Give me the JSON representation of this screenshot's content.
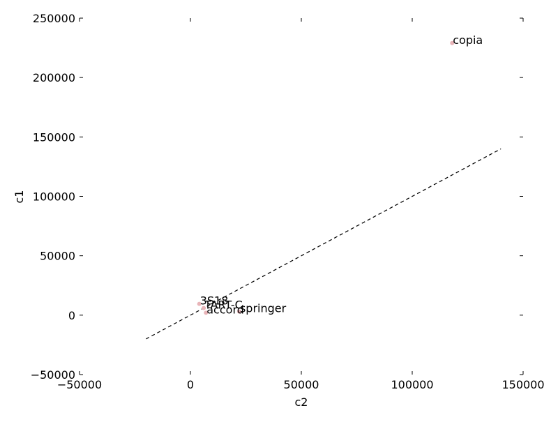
{
  "chart_data": {
    "type": "scatter",
    "title": "",
    "xlabel": "c2",
    "ylabel": "c1",
    "xlim": [
      -50000,
      150000
    ],
    "ylim": [
      -50000,
      250000
    ],
    "x_ticks": [
      -50000,
      0,
      50000,
      100000,
      150000
    ],
    "x_tick_labels": [
      "−50000",
      "0",
      "50000",
      "100000",
      "150000"
    ],
    "y_ticks": [
      -50000,
      0,
      50000,
      100000,
      150000,
      200000,
      250000
    ],
    "y_tick_labels": [
      "−50000",
      "0",
      "50000",
      "100000",
      "150000",
      "200000",
      "250000"
    ],
    "grid": false,
    "point_color": "#e8b4b8",
    "reference_line": {
      "style": "dashed",
      "color": "#000000",
      "x": [
        -20000,
        140000
      ],
      "y": [
        -20000,
        140000
      ]
    },
    "points": [
      {
        "label": "copia",
        "x": 118000,
        "y": 229000
      },
      {
        "label": "3S18",
        "x": 4000,
        "y": 9500
      },
      {
        "label": "TART-C",
        "x": 6000,
        "y": 6000
      },
      {
        "label": "accord",
        "x": 7000,
        "y": 2000
      },
      {
        "label": "springer",
        "x": 22000,
        "y": 3000
      }
    ]
  }
}
